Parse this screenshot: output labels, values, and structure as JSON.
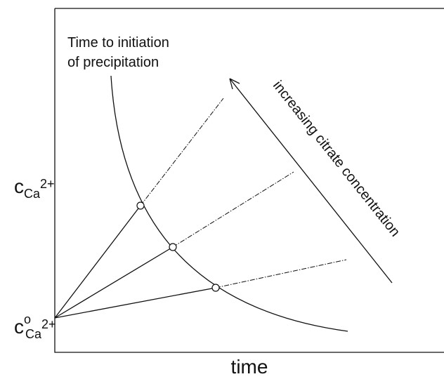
{
  "curve_label": [
    "Time to initiation",
    "of precipitation"
  ],
  "arrow_label": "increasing citrate concentration",
  "x_axis_label": "time",
  "y_label_top": {
    "symbol": "c",
    "subscript": "Ca",
    "charge": "2+"
  },
  "y_label_bottom": {
    "symbol": "c",
    "superscript": "o",
    "subscript": "Ca",
    "charge": "2+"
  }
}
